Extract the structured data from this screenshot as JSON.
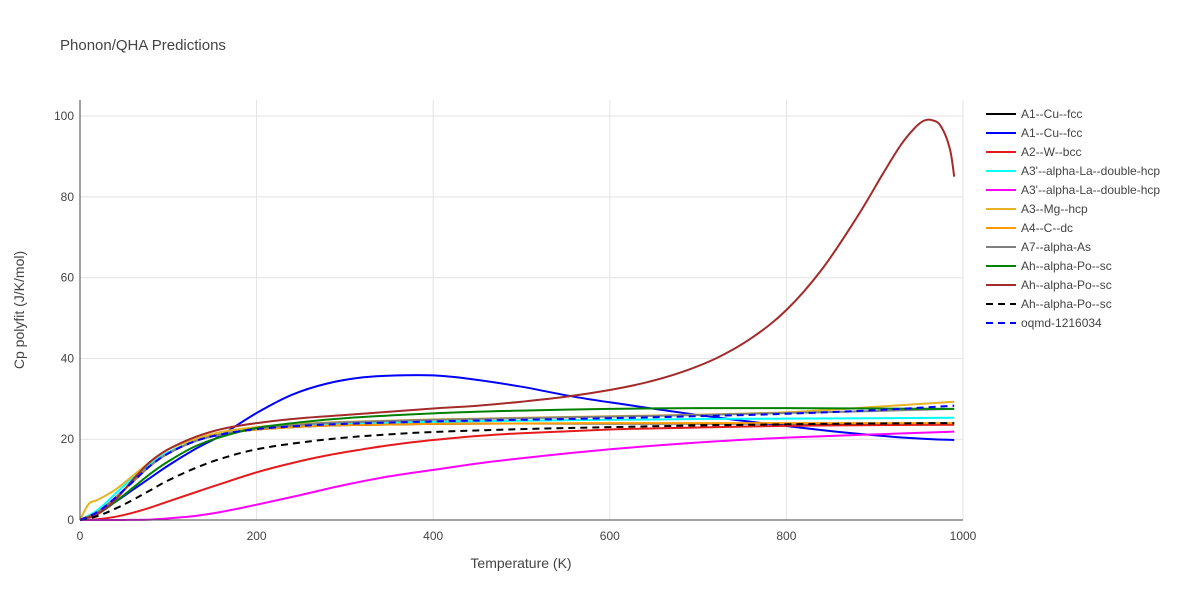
{
  "chart_data": {
    "type": "line",
    "title": "Phonon/QHA Predictions",
    "xlabel": "Temperature (K)",
    "ylabel": "Cp polyfit (J/K/mol)",
    "xlim": [
      0,
      1000
    ],
    "ylim": [
      0,
      104
    ],
    "x_ticks": [
      0,
      200,
      400,
      600,
      800,
      1000
    ],
    "y_ticks": [
      0,
      20,
      40,
      60,
      80,
      100
    ],
    "grid": true,
    "legend_position": "right",
    "series": [
      {
        "name": "A1--Cu--fcc",
        "color": "#000000",
        "dash": "solid",
        "x": [
          0,
          20,
          40,
          60,
          80,
          100,
          130,
          160,
          200,
          250,
          300,
          400,
          500,
          600,
          700,
          800,
          900,
          990
        ],
        "y": [
          0,
          2,
          5.5,
          9.5,
          13.5,
          16.5,
          19.5,
          21.2,
          22.4,
          23.1,
          23.5,
          23.8,
          23.9,
          23.9,
          23.9,
          23.9,
          23.9,
          23.9
        ]
      },
      {
        "name": "A1--Cu--fcc",
        "color": "#0000ff",
        "dash": "solid",
        "x": [
          0,
          20,
          40,
          60,
          80,
          100,
          130,
          160,
          200,
          240,
          280,
          320,
          360,
          400,
          440,
          500,
          560,
          620,
          700,
          780,
          860,
          940,
          990
        ],
        "y": [
          0,
          2,
          4.5,
          7.5,
          10.5,
          13.5,
          17.5,
          21,
          26.5,
          31,
          33.8,
          35.3,
          35.8,
          35.8,
          35,
          33,
          30.5,
          28.5,
          26,
          23.8,
          21.8,
          20.3,
          19.8
        ]
      },
      {
        "name": "A2--W--bcc",
        "color": "#e41a1c",
        "dash": "solid",
        "x": [
          0,
          20,
          40,
          60,
          80,
          100,
          130,
          160,
          200,
          240,
          280,
          320,
          360,
          400,
          450,
          500,
          600,
          700,
          800,
          900,
          990
        ],
        "y": [
          0,
          0.2,
          0.8,
          1.8,
          3.1,
          4.6,
          6.8,
          9,
          11.8,
          14.1,
          16,
          17.5,
          18.8,
          19.8,
          20.8,
          21.5,
          22.4,
          22.9,
          23.3,
          23.5,
          23.6
        ]
      },
      {
        "name": "A3'--alpha-La--double-hcp",
        "color": "#00ffff",
        "dash": "solid",
        "x": [
          0,
          20,
          40,
          60,
          80,
          100,
          130,
          160,
          200,
          250,
          300,
          400,
          500,
          600,
          700,
          800,
          900,
          990
        ],
        "y": [
          0,
          2.5,
          6.5,
          10.5,
          14,
          16.8,
          19.5,
          21.2,
          22.5,
          23.3,
          23.8,
          24.3,
          24.6,
          24.8,
          25,
          25.1,
          25.2,
          25.3
        ]
      },
      {
        "name": "A3'--alpha-La--double-hcp",
        "color": "#ff00ff",
        "dash": "solid",
        "x": [
          0,
          40,
          80,
          100,
          130,
          160,
          200,
          250,
          300,
          350,
          400,
          450,
          500,
          600,
          700,
          800,
          900,
          990
        ],
        "y": [
          0,
          0,
          0.1,
          0.4,
          1,
          2,
          3.8,
          6.2,
          8.7,
          10.8,
          12.4,
          14,
          15.3,
          17.5,
          19.2,
          20.4,
          21.2,
          21.9
        ]
      },
      {
        "name": "A3--Mg--hcp",
        "color": "#e6b422",
        "dash": "solid",
        "x": [
          0,
          10,
          20,
          40,
          60,
          80,
          100,
          130,
          160,
          200,
          250,
          300,
          400,
          500,
          600,
          700,
          800,
          900,
          990
        ],
        "y": [
          0,
          4,
          5,
          7.5,
          11,
          14.5,
          17.5,
          20,
          21.8,
          23,
          23.8,
          24.3,
          24.9,
          25.3,
          25.7,
          26.1,
          26.7,
          28,
          29.3
        ]
      },
      {
        "name": "A4--C--dc",
        "color": "#ff9900",
        "dash": "solid",
        "x": [
          0,
          20,
          40,
          60,
          80,
          100,
          130,
          160,
          200,
          250,
          300,
          400,
          500,
          600,
          700,
          800,
          900,
          990
        ],
        "y": [
          0,
          2,
          5.5,
          9.5,
          13.5,
          16.5,
          19.5,
          21.2,
          22.4,
          23.1,
          23.5,
          23.8,
          23.9,
          24,
          24,
          24,
          24,
          24
        ]
      },
      {
        "name": "A7--alpha-As",
        "color": "#808080",
        "dash": "solid",
        "x": [
          0,
          20,
          40,
          60,
          80,
          100,
          130,
          160,
          200,
          250,
          300,
          400,
          500,
          600,
          700,
          800,
          900,
          990
        ],
        "y": [
          0,
          2,
          5.5,
          9.5,
          13.5,
          16.5,
          19.5,
          21.2,
          22.6,
          23.6,
          24.2,
          24.8,
          25.2,
          25.6,
          26,
          26.5,
          27,
          27.5
        ]
      },
      {
        "name": "Ah--alpha-Po--sc",
        "color": "#008000",
        "dash": "solid",
        "x": [
          0,
          20,
          40,
          60,
          80,
          100,
          130,
          160,
          200,
          250,
          300,
          400,
          500,
          600,
          700,
          800,
          900,
          990
        ],
        "y": [
          0,
          1.5,
          4.5,
          8,
          11.5,
          14.5,
          18.2,
          20.6,
          22.8,
          24.2,
          25.2,
          26.4,
          27.1,
          27.5,
          27.7,
          27.7,
          27.6,
          27.5
        ]
      },
      {
        "name": "Ah--alpha-Po--sc",
        "color": "#a52a2a",
        "dash": "solid",
        "x": [
          0,
          20,
          40,
          60,
          80,
          100,
          130,
          160,
          200,
          250,
          300,
          350,
          400,
          450,
          500,
          550,
          600,
          640,
          680,
          720,
          760,
          800,
          840,
          880,
          910,
          930,
          945,
          955,
          965,
          975,
          985,
          990
        ],
        "y": [
          0,
          1.5,
          5,
          10,
          14.5,
          17.5,
          20.5,
          22.5,
          24,
          25.2,
          26,
          26.8,
          27.6,
          28.3,
          29.3,
          30.5,
          32.2,
          34,
          36.5,
          40,
          45,
          52,
          62,
          75,
          86,
          93,
          97,
          98.8,
          99,
          97.5,
          92,
          85
        ]
      },
      {
        "name": "Ah--alpha-Po--sc",
        "color": "#000000",
        "dash": "dashed",
        "x": [
          0,
          20,
          40,
          60,
          80,
          100,
          130,
          160,
          200,
          250,
          300,
          350,
          400,
          500,
          600,
          700,
          800,
          900,
          990
        ],
        "y": [
          0,
          1,
          2.8,
          5,
          7.4,
          9.8,
          12.8,
          15.2,
          17.5,
          19.2,
          20.4,
          21.2,
          21.8,
          22.5,
          23,
          23.4,
          23.7,
          23.9,
          24
        ]
      },
      {
        "name": "oqmd-1216034",
        "color": "#0000ff",
        "dash": "dashed",
        "x": [
          0,
          20,
          40,
          60,
          80,
          100,
          130,
          160,
          200,
          250,
          300,
          400,
          500,
          600,
          700,
          800,
          900,
          990
        ],
        "y": [
          0,
          2,
          5.5,
          9.5,
          13.5,
          16.5,
          19.5,
          21.2,
          22.5,
          23.3,
          23.8,
          24.4,
          24.8,
          25.2,
          25.7,
          26.3,
          27.2,
          28.3
        ]
      }
    ]
  }
}
